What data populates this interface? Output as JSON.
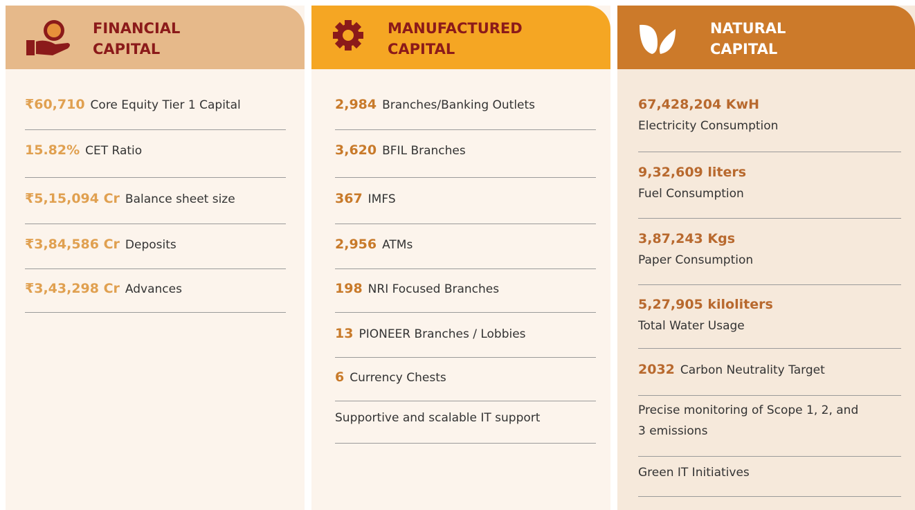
{
  "columns": [
    {
      "title": "FINANCIAL CAPITAL",
      "items": [
        {
          "value": "₹60,710",
          "label": "Core Equity Tier 1 Capital"
        },
        {
          "value": "15.82%",
          "label": "CET Ratio"
        },
        {
          "value": "₹5,15,094 Cr",
          "label": "Balance sheet size"
        },
        {
          "value": "₹3,84,586 Cr",
          "label": "Deposits"
        },
        {
          "value": "₹3,43,298 Cr",
          "label": "Advances"
        }
      ]
    },
    {
      "title": "MANUFACTURED CAPITAL",
      "items": [
        {
          "value": "2,984",
          "label": "Branches/Banking Outlets"
        },
        {
          "value": "3,620",
          "label": "BFIL Branches"
        },
        {
          "value": "367",
          "label": "IMFS"
        },
        {
          "value": "2,956",
          "label": "ATMs"
        },
        {
          "value": "198",
          "label": "NRI Focused Branches"
        },
        {
          "value": "13",
          "label": "PIONEER Branches / Lobbies"
        },
        {
          "value": "6",
          "label": "Currency Chests"
        },
        {
          "label": "Supportive and scalable IT support"
        }
      ]
    },
    {
      "title": "NATURAL CAPITAL",
      "items": [
        {
          "value": "67,428,204 KwH",
          "label": "Electricity Consumption"
        },
        {
          "value": "9,32,609 liters",
          "label": "Fuel Consumption"
        },
        {
          "value": "3,87,243 Kgs",
          "label": "Paper Consumption"
        },
        {
          "value": "5,27,905 kiloliters",
          "label": "Total Water Usage"
        },
        {
          "value": "2032",
          "label": "Carbon Neutrality Target"
        },
        {
          "label": "Precise monitoring of Scope 1, 2, and 3 emissions"
        },
        {
          "label": "Green IT Initiatives"
        }
      ]
    }
  ]
}
